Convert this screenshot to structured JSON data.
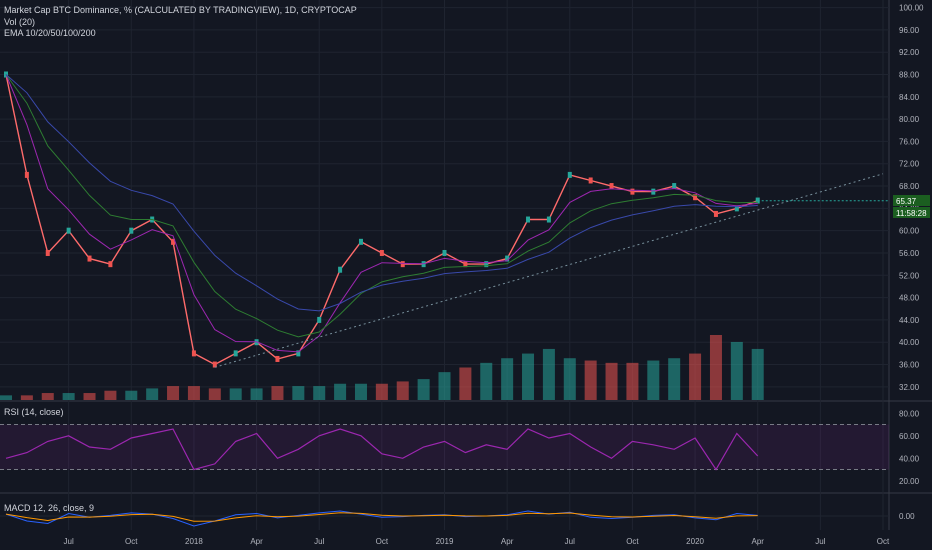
{
  "legend": {
    "main_title": "Market Cap BTC Dominance, % (CALCULATED BY TRADINGVIEW), 1D, CRYPTOCAP",
    "volume_label": "Vol (20)",
    "ema_label": "EMA 10/20/50/100/200",
    "rsi_label": "RSI (14, close)",
    "macd_label": "MACD 12, 26, close, 9"
  },
  "price_badge": "65.37",
  "time_badge": "11:58:28",
  "colors": {
    "background": "#131722",
    "grid": "#1f2430",
    "up": "#26a69a",
    "down": "#ef5350",
    "ema10": "#ff6b6b",
    "ema20": "#9c27b0",
    "ema50": "#2e7d32",
    "ema100": "#3949ab",
    "ema200": "#1565c0",
    "rsi": "#9c27b0",
    "trendline": "#78909c",
    "price_badge": "#1b5e20"
  },
  "chart_data": [
    {
      "type": "line",
      "panel": "price",
      "title": "Market Cap BTC Dominance, % (CALCULATED BY TRADINGVIEW), 1D, CRYPTOCAP",
      "x_ticks": [
        "Jul",
        "Oct",
        "2018",
        "Apr",
        "Jul",
        "Oct",
        "2019",
        "Apr",
        "Jul",
        "Oct",
        "2020",
        "Apr",
        "Jul",
        "Oct"
      ],
      "y_ticks": [
        "100.00",
        "96.00",
        "92.00",
        "88.00",
        "84.00",
        "80.00",
        "76.00",
        "72.00",
        "68.00",
        "64.00",
        "60.00",
        "56.00",
        "52.00",
        "48.00",
        "44.00",
        "40.00",
        "36.00",
        "32.00"
      ],
      "x_range": [
        "2017-04",
        "2020-10"
      ],
      "y_range": [
        30,
        101
      ],
      "x": [
        "2017-04",
        "2017-05",
        "2017-06",
        "2017-07",
        "2017-08",
        "2017-09",
        "2017-10",
        "2017-11",
        "2017-12",
        "2018-01",
        "2018-02",
        "2018-03",
        "2018-04",
        "2018-05",
        "2018-06",
        "2018-07",
        "2018-08",
        "2018-09",
        "2018-10",
        "2018-11",
        "2018-12",
        "2019-01",
        "2019-02",
        "2019-03",
        "2019-04",
        "2019-05",
        "2019-06",
        "2019-07",
        "2019-08",
        "2019-09",
        "2019-10",
        "2019-11",
        "2019-12",
        "2020-01",
        "2020-02",
        "2020-03",
        "2020-04"
      ],
      "values": [
        88,
        70,
        56,
        60,
        55,
        54,
        60,
        62,
        58,
        38,
        36,
        38,
        40,
        37,
        38,
        44,
        53,
        58,
        56,
        54,
        54,
        56,
        54,
        54,
        55,
        62,
        62,
        70,
        69,
        68,
        67,
        67,
        68,
        66,
        63,
        64,
        65.4
      ],
      "last_value": 65.37,
      "trendline": "ascending dotted support from 2018 low through 2020",
      "series": [
        {
          "name": "EMA 10/20/50/100/200",
          "note": "five moving averages"
        }
      ]
    },
    {
      "type": "bar",
      "panel": "volume",
      "title": "Vol (20)",
      "values": [
        2,
        2,
        3,
        3,
        3,
        4,
        4,
        5,
        6,
        6,
        5,
        5,
        5,
        6,
        6,
        6,
        7,
        7,
        7,
        8,
        9,
        12,
        14,
        16,
        18,
        20,
        22,
        18,
        17,
        16,
        16,
        17,
        18,
        20,
        28,
        25,
        22
      ]
    },
    {
      "type": "line",
      "panel": "rsi",
      "title": "RSI (14, close)",
      "y_ticks": [
        "80.00",
        "60.00",
        "40.00",
        "20.00"
      ],
      "y_range": [
        10,
        90
      ],
      "band": [
        30,
        70
      ],
      "values": [
        40,
        45,
        55,
        60,
        50,
        48,
        58,
        62,
        66,
        30,
        35,
        55,
        62,
        40,
        48,
        60,
        66,
        60,
        44,
        40,
        50,
        55,
        45,
        52,
        48,
        66,
        58,
        62,
        50,
        40,
        55,
        52,
        48,
        58,
        30,
        62,
        42
      ]
    },
    {
      "type": "line",
      "panel": "macd",
      "title": "MACD 12, 26, close, 9",
      "y_ticks": [
        "0.00"
      ],
      "values": [
        0.3,
        -0.8,
        -1.2,
        0.4,
        -0.2,
        0.1,
        0.5,
        0.3,
        -0.4,
        -1.6,
        -0.8,
        0.2,
        0.4,
        -0.3,
        0.1,
        0.5,
        0.8,
        0.3,
        -0.2,
        -0.1,
        0.1,
        0.2,
        -0.1,
        0.0,
        0.2,
        0.8,
        0.3,
        0.6,
        -0.2,
        -0.4,
        -0.2,
        0.1,
        0.2,
        -0.3,
        -0.6,
        0.4,
        0.1
      ]
    }
  ]
}
